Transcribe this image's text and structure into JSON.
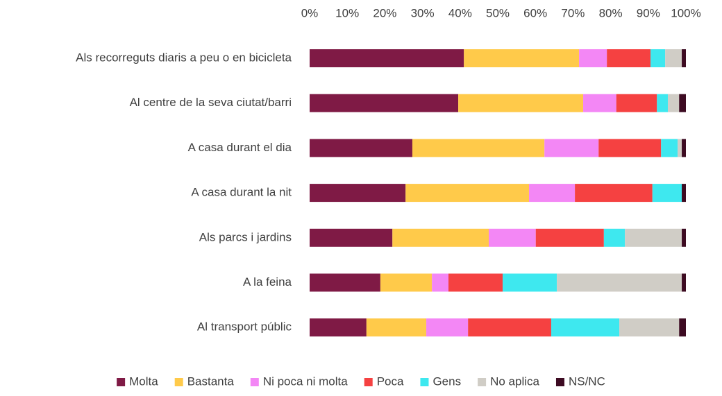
{
  "chart_data": {
    "type": "bar",
    "orientation": "horizontal",
    "stacked": true,
    "categories": [
      "Als recorreguts diaris a peu o en bicicleta",
      "Al centre de la seva ciutat/barri",
      "A casa durant el dia",
      "A casa durant la nit",
      "Als parcs i jardins",
      "A la feina",
      "Al transport públic"
    ],
    "series": [
      {
        "name": "Molta",
        "color": "#7f1a45",
        "values": [
          41.0,
          39.5,
          27.3,
          25.5,
          22.0,
          18.8,
          15.1
        ]
      },
      {
        "name": "Bastanta",
        "color": "#ffca4a",
        "values": [
          30.6,
          33.2,
          35.1,
          32.8,
          25.6,
          13.7,
          15.9
        ]
      },
      {
        "name": "Ni poca ni molta",
        "color": "#f387f5",
        "values": [
          7.4,
          8.8,
          14.4,
          12.2,
          12.5,
          4.4,
          11.1
        ]
      },
      {
        "name": "Poca",
        "color": "#f54141",
        "values": [
          11.6,
          10.8,
          16.6,
          20.6,
          18.1,
          14.4,
          22.1
        ]
      },
      {
        "name": "Gens",
        "color": "#3ee8ef",
        "values": [
          3.9,
          2.9,
          4.4,
          7.8,
          5.6,
          14.4,
          18.1
        ]
      },
      {
        "name": "No aplica",
        "color": "#d0cdc6",
        "values": [
          4.4,
          3.0,
          1.1,
          0,
          15.1,
          33.2,
          15.9
        ]
      },
      {
        "name": "NS/NC",
        "color": "#3d0b22",
        "values": [
          1.1,
          1.8,
          1.1,
          1.1,
          1.1,
          1.1,
          1.8
        ]
      }
    ],
    "xlim": [
      0,
      100
    ],
    "xticks": [
      {
        "value": 0,
        "label": "0%"
      },
      {
        "value": 10,
        "label": "10%"
      },
      {
        "value": 20,
        "label": "20%"
      },
      {
        "value": 30,
        "label": "30%"
      },
      {
        "value": 40,
        "label": "40%"
      },
      {
        "value": 50,
        "label": "50%"
      },
      {
        "value": 60,
        "label": "60%"
      },
      {
        "value": 70,
        "label": "70%"
      },
      {
        "value": 80,
        "label": "80%"
      },
      {
        "value": 90,
        "label": "90%"
      },
      {
        "value": 100,
        "label": "100%"
      }
    ],
    "grid": false,
    "legend": "bottom"
  }
}
